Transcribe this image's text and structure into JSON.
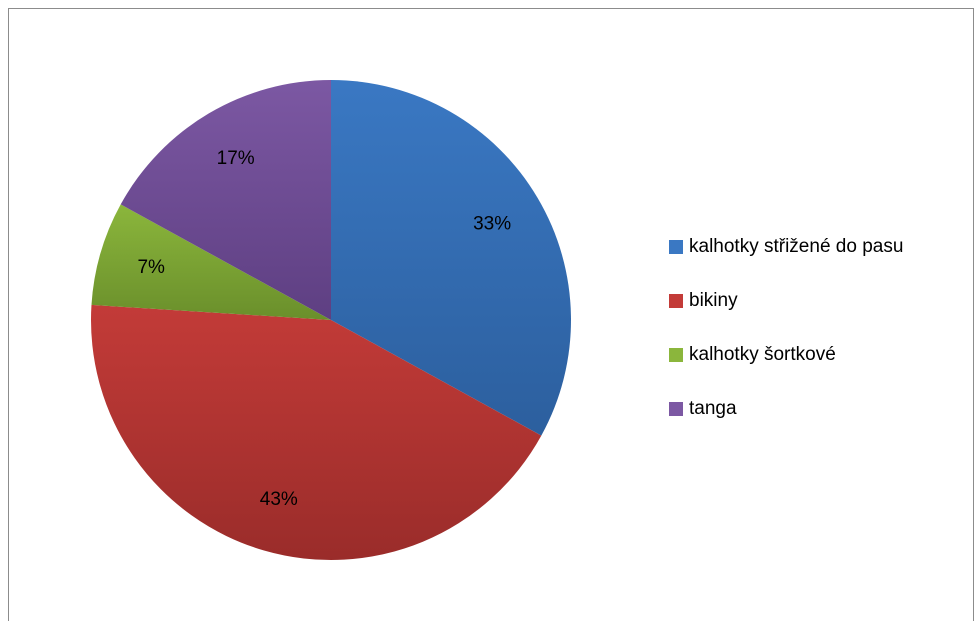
{
  "chart_data": {
    "type": "pie",
    "title": "",
    "categories": [
      "kalhotky střižené do pasu",
      "bikiny",
      "kalhotky šortkové",
      "tanga"
    ],
    "values": [
      33,
      43,
      7,
      17
    ],
    "data_labels": [
      "33%",
      "43%",
      "7%",
      "17%"
    ],
    "colors": [
      "#3a78c3",
      "#c33b38",
      "#8bb63c",
      "#7c58a3"
    ],
    "colors_dark": [
      "#2c5f9e",
      "#9a2c2a",
      "#6a8f2b",
      "#5e3f82"
    ],
    "start_angle_deg": 0,
    "direction": "clockwise",
    "legend_position": "right"
  }
}
